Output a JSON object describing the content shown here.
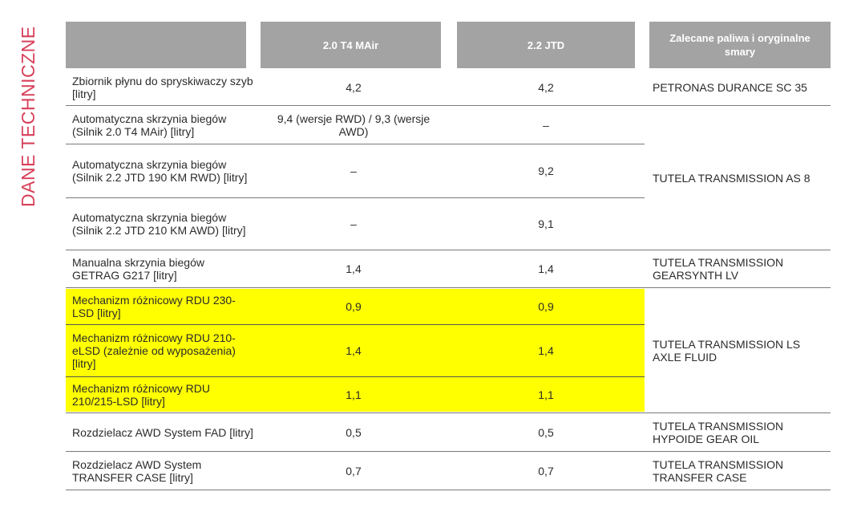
{
  "side_title": "DANE TECHNICZNE",
  "header": {
    "col1": "",
    "col2": "2.0 T4 MAir",
    "col3": "2.2 JTD",
    "col4_line1": "Zalecane paliwa i oryginalne",
    "col4_line2": "smary"
  },
  "rows": [
    {
      "label": "Zbiornik płynu do spryskiwaczy szyb [litry]",
      "v1": "4,2",
      "v2": "4,2"
    },
    {
      "label": "Automatyczna skrzynia biegów (Silnik 2.0 T4 MAir) [litry]",
      "v1": "9,4 (wersje RWD) / 9,3 (wersje AWD)",
      "v2": "–"
    },
    {
      "label": "Automatyczna skrzynia biegów (Silnik 2.2 JTD 190 KM RWD) [litry]",
      "v1": "–",
      "v2": "9,2"
    },
    {
      "label": "Automatyczna skrzynia biegów (Silnik 2.2 JTD 210 KM AWD) [litry]",
      "v1": "–",
      "v2": "9,1"
    },
    {
      "label": "Manualna skrzynia biegów GETRAG G217 [litry]",
      "v1": "1,4",
      "v2": "1,4"
    },
    {
      "label": "Mechanizm różnicowy RDU 230-LSD [litry]",
      "v1": "0,9",
      "v2": "0,9"
    },
    {
      "label": "Mechanizm różnicowy RDU 210-eLSD (zależnie od wyposażenia) [litry]",
      "v1": "1,4",
      "v2": "1,4"
    },
    {
      "label": "Mechanizm różnicowy RDU 210/215-LSD [litry]",
      "v1": "1,1",
      "v2": "1,1"
    },
    {
      "label": "Rozdzielacz AWD System FAD [litry]",
      "v1": "0,5",
      "v2": "0,5"
    },
    {
      "label": "Rozdzielacz AWD System TRANSFER CASE [litry]",
      "v1": "0,7",
      "v2": "0,7"
    }
  ],
  "fluids": [
    "PETRONAS DURANCE SC 35",
    "TUTELA TRANSMISSION AS 8",
    "TUTELA TRANSMISSION GEARSYNTH LV",
    "TUTELA TRANSMISSION LS AXLE FLUID",
    "TUTELA TRANSMISSION HYPOIDE GEAR OIL",
    "TUTELA TRANSMISSION TRANSFER CASE"
  ],
  "highlight_color": "#ffff00",
  "accent_color": "#d8405a",
  "header_color": "#a3a3a3"
}
